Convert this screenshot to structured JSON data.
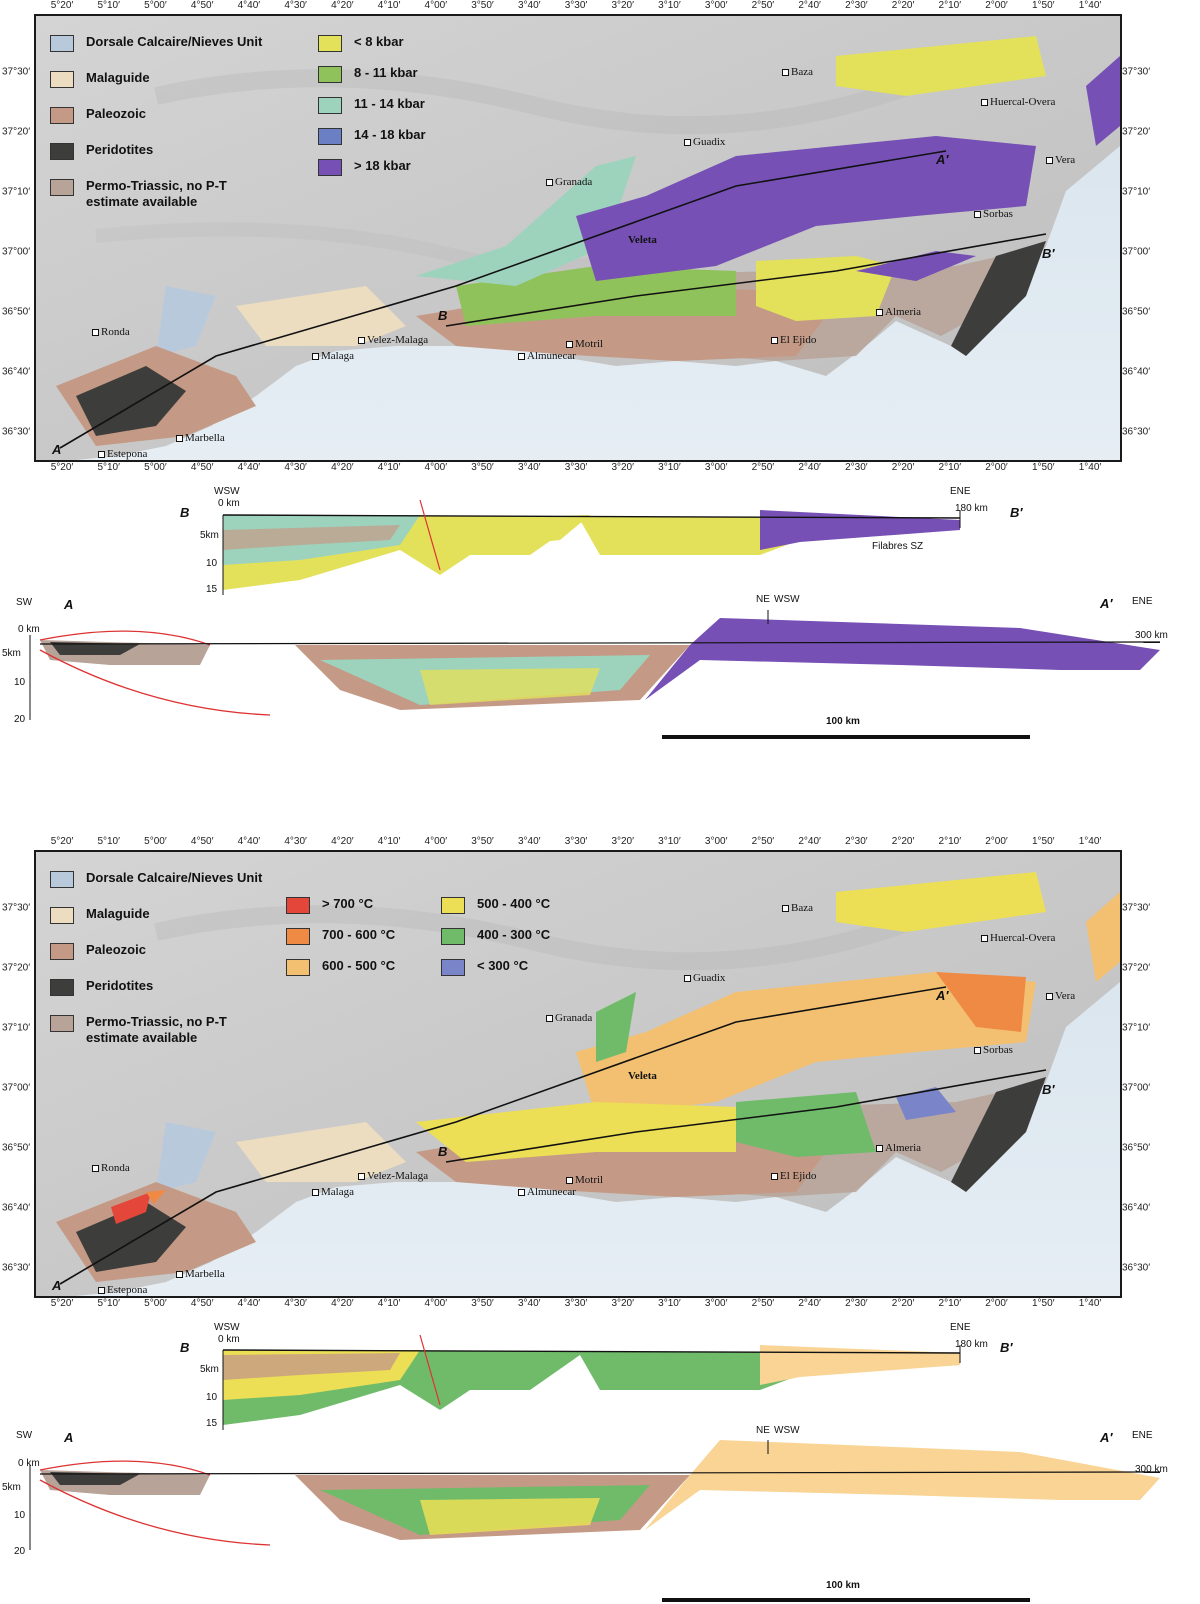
{
  "panel_top": {
    "lon_labels": [
      "5°20′",
      "5°10′",
      "5°00′",
      "4°50′",
      "4°40′",
      "4°30′",
      "4°20′",
      "4°10′",
      "4°00′",
      "3°50′",
      "3°40′",
      "3°30′",
      "3°20′",
      "3°10′",
      "3°00′",
      "2°50′",
      "2°40′",
      "2°30′",
      "2°20′",
      "2°10′",
      "2°00′",
      "1°50′",
      "1°40′"
    ],
    "lat_labels": [
      "37°30′",
      "37°20′",
      "37°10′",
      "37°00′",
      "36°50′",
      "36°40′",
      "36°30′"
    ],
    "legend_units": [
      {
        "label": "Dorsale Calcaire/Nieves Unit",
        "color": "#b9c9dc"
      },
      {
        "label": "Malaguide",
        "color": "#ecdcc0"
      },
      {
        "label": "Paleozoic",
        "color": "#c49a86"
      },
      {
        "label": "Peridotites",
        "color": "#3d3d3b"
      },
      {
        "label": "Permo-Triassic, no P-T estimate available",
        "color": "#b8a399"
      }
    ],
    "legend_classes": [
      {
        "label": "< 8 kbar",
        "color": "#e3e05a"
      },
      {
        "label": "8 - 11 kbar",
        "color": "#8fc25a"
      },
      {
        "label": "11 - 14 kbar",
        "color": "#9dd3bd"
      },
      {
        "label": "14 - 18 kbar",
        "color": "#6b7fc4"
      },
      {
        "label": "> 18 kbar",
        "color": "#7650b5"
      }
    ]
  },
  "panel_bottom": {
    "lon_labels": [
      "5°20′",
      "5°10′",
      "5°00′",
      "4°50′",
      "4°40′",
      "4°30′",
      "4°20′",
      "4°10′",
      "4°00′",
      "3°50′",
      "3°40′",
      "3°30′",
      "3°20′",
      "3°10′",
      "3°00′",
      "2°50′",
      "2°40′",
      "2°30′",
      "2°20′",
      "2°10′",
      "2°00′",
      "1°50′",
      "1°40′"
    ],
    "lat_labels": [
      "37°30′",
      "37°20′",
      "37°10′",
      "37°00′",
      "36°50′",
      "36°40′",
      "36°30′"
    ],
    "legend_units": [
      {
        "label": "Dorsale Calcaire/Nieves Unit",
        "color": "#b9c9dc"
      },
      {
        "label": "Malaguide",
        "color": "#ecdcc0"
      },
      {
        "label": "Paleozoic",
        "color": "#c49a86"
      },
      {
        "label": "Peridotites",
        "color": "#3d3d3b"
      },
      {
        "label": "Permo-Triassic, no P-T estimate available",
        "color": "#b8a399"
      }
    ],
    "legend_classes": [
      {
        "label": "> 700 °C",
        "color": "#e4473a"
      },
      {
        "label": "700 - 600 °C",
        "color": "#ef8a45"
      },
      {
        "label": "600 - 500 °C",
        "color": "#f2c070"
      },
      {
        "label": "500 - 400 °C",
        "color": "#ecdf55"
      },
      {
        "label": "400 - 300 °C",
        "color": "#6fbb6a"
      },
      {
        "label": "< 300 °C",
        "color": "#7a84c8"
      }
    ]
  },
  "places": {
    "baza": "Baza",
    "huercal": "Huercal-Overa",
    "guadix": "Guadix",
    "granada": "Granada",
    "vera": "Vera",
    "veleta": "Veleta",
    "sorbas": "Sorbas",
    "almeria": "Almeria",
    "ronda": "Ronda",
    "velez": "Velez-Malaga",
    "motril": "Motril",
    "ejido": "El Ejido",
    "malaga": "Malaga",
    "almunecar": "Almunecar",
    "marbella": "Marbella",
    "estepona": "Estepona"
  },
  "section_labels": {
    "A": "A",
    "A_prime": "A′",
    "B": "B",
    "B_prime": "B′"
  },
  "section_B": {
    "left_dir": "WSW",
    "right_dir": "ENE",
    "depth_labels": [
      "0 km",
      "5km",
      "10",
      "15"
    ],
    "end_km": "180 km",
    "annotation": "Filabres SZ"
  },
  "section_A": {
    "left_dir": "SW",
    "mid_dir": "NE",
    "mid_dir2": "WSW",
    "right_dir": "ENE",
    "depth_labels": [
      "0 km",
      "5km",
      "10",
      "20"
    ],
    "end_km": "300 km",
    "scale_label": "100 km"
  },
  "colors": {
    "sea": "#dbe6ef",
    "land": "#cfcfcf",
    "frame": "#1a1a1a"
  }
}
